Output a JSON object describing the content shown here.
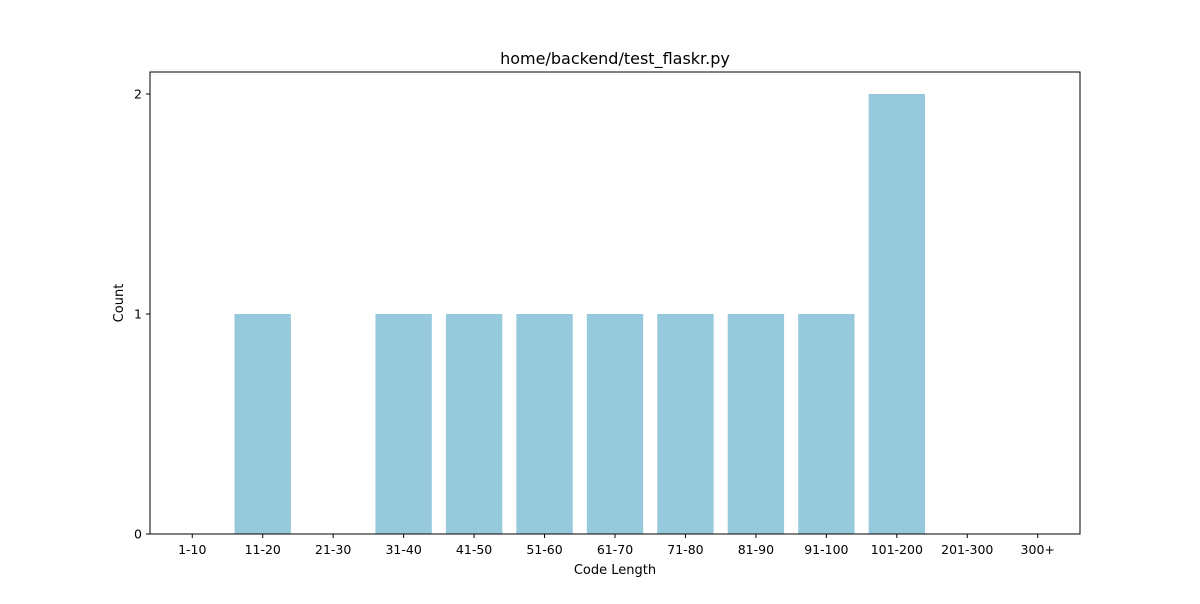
{
  "chart_data": {
    "type": "bar",
    "title": "home/backend/test_flaskr.py",
    "xlabel": "Code Length",
    "ylabel": "Count",
    "categories": [
      "1-10",
      "11-20",
      "21-30",
      "31-40",
      "41-50",
      "51-60",
      "61-70",
      "71-80",
      "81-90",
      "91-100",
      "101-200",
      "201-300",
      "300+"
    ],
    "values": [
      0,
      1,
      0,
      1,
      1,
      1,
      1,
      1,
      1,
      1,
      2,
      0,
      0
    ],
    "ylim": [
      0,
      2.1
    ],
    "yticks": [
      0,
      1,
      2
    ],
    "bar_color": "#96c9dc",
    "grid": false,
    "legend": "none"
  }
}
